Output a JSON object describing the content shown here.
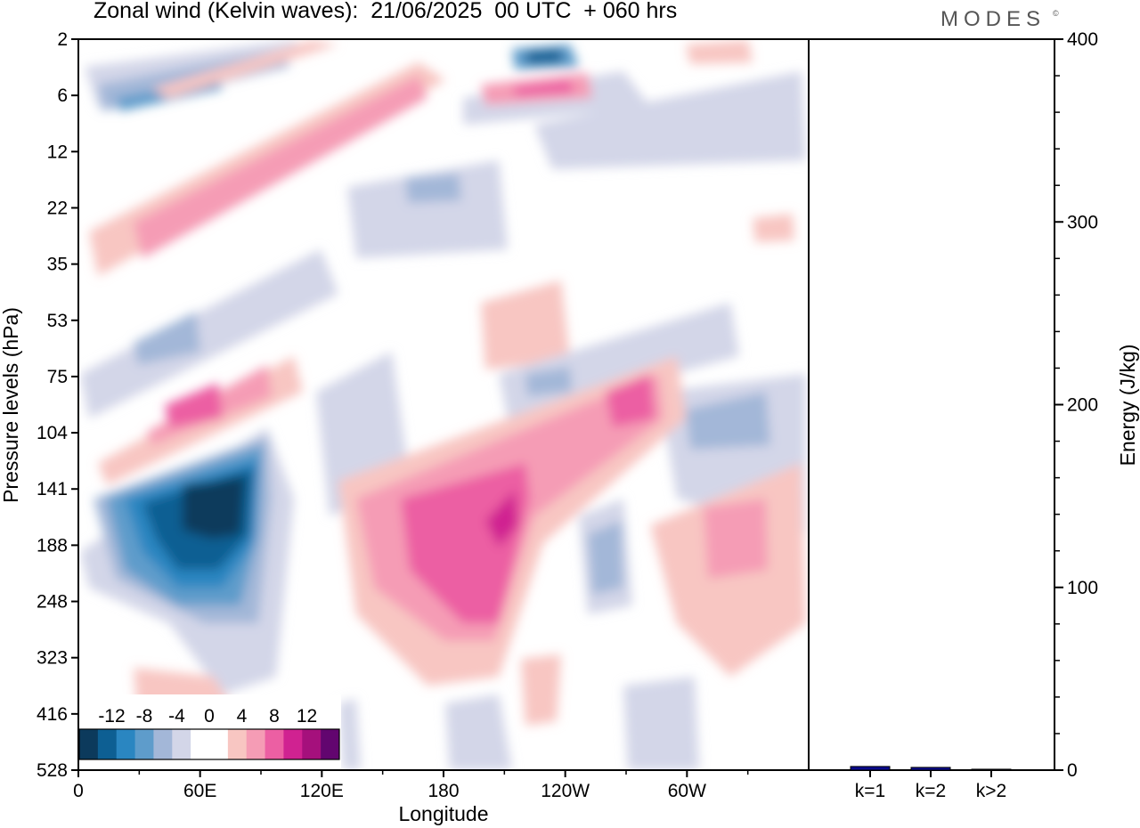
{
  "title": "Zonal wind (Kelvin waves):  21/06/2025  00 UTC  + 060 hrs",
  "brand": "MODES",
  "brand_mark": "©",
  "chart_data": [
    {
      "type": "heatmap",
      "xlabel": "Longitude",
      "ylabel": "Pressure levels (hPa)",
      "x_ticks": [
        "0",
        "60E",
        "120E",
        "180",
        "120W",
        "60W"
      ],
      "y_ticks": [
        "2",
        "6",
        "12",
        "22",
        "35",
        "53",
        "75",
        "104",
        "141",
        "188",
        "248",
        "323",
        "416",
        "528"
      ],
      "colorbar": {
        "labels": [
          "-12",
          "-8",
          "-4",
          "0",
          "4",
          "8",
          "12"
        ],
        "levels": [
          -16,
          -14,
          -12,
          -10,
          -8,
          -6,
          -4,
          -2,
          0,
          2,
          4,
          6,
          8,
          10,
          12,
          14,
          16
        ],
        "colors": [
          "#0c3a5c",
          "#0d5f93",
          "#2a86c1",
          "#5e9ccb",
          "#a3b7d8",
          "#d3d6e8",
          "#ffffff",
          "#ffffff",
          "#f8c6c2",
          "#f59cb5",
          "#ec5fa3",
          "#d02291",
          "#a5107c",
          "#62056f"
        ]
      },
      "features": [
        {
          "kind": "negative",
          "lon": 60,
          "level": 150,
          "peak": -16
        },
        {
          "kind": "positive",
          "lon": 180,
          "level": 160,
          "peak": 10
        },
        {
          "kind": "positive",
          "lon": 245,
          "level": 100,
          "peak": 8
        },
        {
          "kind": "positive",
          "lon": 40,
          "level": 85,
          "peak": 8
        },
        {
          "kind": "negative",
          "lon": 40,
          "level": 6,
          "peak": -8
        },
        {
          "kind": "negative",
          "lon": 225,
          "level": 3,
          "peak": -10
        },
        {
          "kind": "positive",
          "lon": 230,
          "level": 5,
          "peak": 8
        },
        {
          "kind": "positive",
          "lon": 150,
          "level": 6,
          "peak": 6
        },
        {
          "kind": "positive",
          "lon": 310,
          "level": 170,
          "peak": 6
        }
      ]
    },
    {
      "type": "bar",
      "ylabel": "Energy (J/kg)",
      "categories": [
        "k=1",
        "k=2",
        "k>2"
      ],
      "values": [
        2,
        1.5,
        0.5
      ],
      "ylim": [
        0,
        400
      ],
      "y_ticks": [
        "0",
        "100",
        "200",
        "300",
        "400"
      ],
      "bar_color": "#0a0a8c"
    }
  ]
}
